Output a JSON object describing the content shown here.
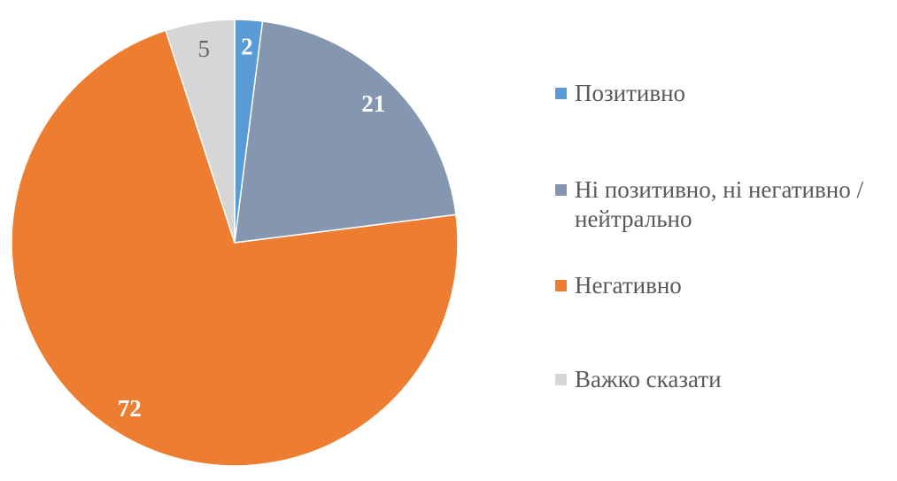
{
  "chart_data": {
    "type": "pie",
    "title": "",
    "unit": "percent",
    "total": 100,
    "start_angle_deg": 0,
    "direction": "clockwise",
    "legend_position": "right",
    "background_color": "#ffffff",
    "slice_border_color": "#ffffff",
    "slices": [
      {
        "label": "Позитивно",
        "value": 2,
        "color": "#5B9BD5",
        "value_label": "2",
        "value_color": "#FFFFFF",
        "value_bold": true
      },
      {
        "label": "Ні позитивно, ні негативно / нейтрально",
        "value": 21,
        "color": "#8496B0",
        "value_label": "21",
        "value_color": "#FFFFFF",
        "value_bold": true
      },
      {
        "label": "Негативно",
        "value": 72,
        "color": "#ED7D31",
        "value_label": "72",
        "value_color": "#FFFFFF",
        "value_bold": true
      },
      {
        "label": "Важко сказати",
        "value": 5,
        "color": "#D6D6D6",
        "value_label": "5",
        "value_color": "#666666",
        "value_bold": false
      }
    ]
  },
  "legend": {
    "text_color": "#595959",
    "items": [
      {
        "label": "Позитивно"
      },
      {
        "label": "Ні позитивно, ні негативно / нейтрально"
      },
      {
        "label": "Негативно"
      },
      {
        "label": "Важко сказати"
      }
    ]
  }
}
